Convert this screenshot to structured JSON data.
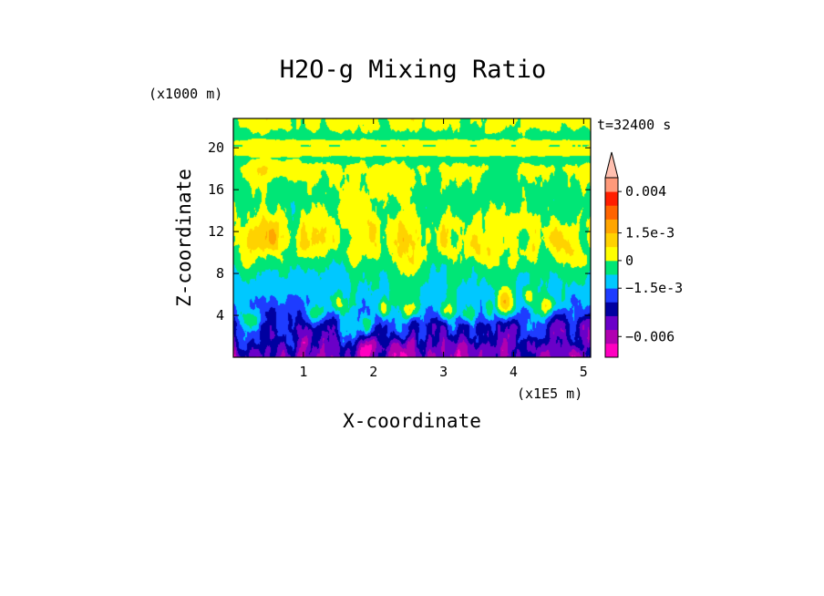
{
  "chart_data": {
    "type": "heatmap",
    "title": "H2O-g Mixing Ratio",
    "xlabel": "X-coordinate",
    "ylabel": "Z-coordinate",
    "x_unit": "(x1E5 m)",
    "y_unit": "(x1000 m)",
    "time_label": "t=32400 s",
    "x_range": [
      0,
      5.1
    ],
    "y_range": [
      0,
      22.8
    ],
    "x_ticks": [
      {
        "value": 1,
        "label": "1"
      },
      {
        "value": 2,
        "label": "2"
      },
      {
        "value": 3,
        "label": "3"
      },
      {
        "value": 4,
        "label": "4"
      },
      {
        "value": 5,
        "label": "5"
      }
    ],
    "y_ticks": [
      {
        "value": 4,
        "label": "4"
      },
      {
        "value": 8,
        "label": "8"
      },
      {
        "value": 12,
        "label": "12"
      },
      {
        "value": 16,
        "label": "16"
      },
      {
        "value": 20,
        "label": "20"
      }
    ],
    "colorbar": {
      "levels": [
        "#ff00c0",
        "#b000b0",
        "#6a00c8",
        "#0000a0",
        "#1e3cff",
        "#00c8ff",
        "#00e676",
        "#ffff00",
        "#ffd200",
        "#ffa500",
        "#ff6400",
        "#ff1e00",
        "#ff9a7a",
        "#ffc0b0"
      ],
      "extend": "max",
      "labels": [
        {
          "value": 0.004,
          "label": "0.004",
          "level": 12
        },
        {
          "value": 0.0015,
          "label": "1.5e-3",
          "level": 9
        },
        {
          "value": 0,
          "label": "0",
          "level": 7
        },
        {
          "value": -0.0015,
          "label": "−1.5e-3",
          "level": 5
        },
        {
          "value": -0.006,
          "label": "−0.006",
          "level": 1.5
        }
      ]
    },
    "field": {
      "ygrid": [
        0,
        1,
        2,
        3,
        4,
        5,
        6,
        7,
        8,
        9,
        10,
        11,
        12,
        13,
        14,
        15,
        16,
        17,
        18,
        19,
        19.4,
        19.7,
        20.2,
        20.5,
        21,
        22,
        22.8
      ],
      "profile": [
        2.4,
        3.2,
        3.6,
        3.8,
        4.4,
        5.2,
        5.6,
        5.8,
        6.0,
        6.5,
        7.1,
        7.4,
        7.4,
        7.2,
        6.8,
        6.6,
        6.6,
        6.8,
        7.0,
        6.6,
        7.4,
        7.6,
        7.0,
        7.6,
        6.5,
        7.2,
        7.4
      ],
      "noise_amp": [
        1.2,
        1.3,
        1.3,
        1.2,
        1.0,
        0.8,
        0.5,
        0.4,
        0.4,
        0.6,
        0.7,
        0.8,
        0.8,
        0.7,
        0.6,
        0.5,
        0.5,
        0.4,
        0.4,
        0.2,
        0.1,
        0.1,
        0.1,
        0.1,
        0.4,
        0.5,
        0.5
      ],
      "plumes": [
        {
          "x": 1.15,
          "z": 4.0,
          "sx": 0.12,
          "sz": 1.0,
          "v": 3.2
        },
        {
          "x": 1.95,
          "z": 3.0,
          "sx": 0.15,
          "sz": 0.9,
          "v": 3.2
        },
        {
          "x": 2.15,
          "z": 4.5,
          "sx": 0.08,
          "sz": 0.9,
          "v": 2.8
        },
        {
          "x": 2.55,
          "z": 4.4,
          "sx": 0.1,
          "sz": 0.8,
          "v": 2.4
        },
        {
          "x": 3.05,
          "z": 4.2,
          "sx": 0.12,
          "sz": 0.9,
          "v": 2.8
        },
        {
          "x": 3.35,
          "z": 4.0,
          "sx": 0.1,
          "sz": 0.8,
          "v": 2.2
        },
        {
          "x": 3.65,
          "z": 4.4,
          "sx": 0.07,
          "sz": 1.0,
          "v": 2.4
        },
        {
          "x": 3.9,
          "z": 5.2,
          "sx": 0.14,
          "sz": 1.4,
          "v": 3.6
        },
        {
          "x": 4.2,
          "z": 5.8,
          "sx": 0.08,
          "sz": 0.9,
          "v": 2.2
        },
        {
          "x": 4.5,
          "z": 4.8,
          "sx": 0.12,
          "sz": 1.0,
          "v": 3.0
        },
        {
          "x": 0.25,
          "z": 3.5,
          "sx": 0.12,
          "sz": 1.0,
          "v": 2.2
        },
        {
          "x": 1.5,
          "z": 5.0,
          "sx": 0.12,
          "sz": 1.0,
          "v": 1.8
        },
        {
          "x": 2.4,
          "z": 9.0,
          "sx": 0.18,
          "sz": 3.0,
          "v": 1.2
        },
        {
          "x": 0.5,
          "z": 11.5,
          "sx": 0.2,
          "sz": 1.5,
          "v": 1.3
        },
        {
          "x": 1.1,
          "z": 10.5,
          "sx": 0.15,
          "sz": 2.0,
          "v": 1.0
        },
        {
          "x": 3.6,
          "z": 10.0,
          "sx": 0.2,
          "sz": 2.5,
          "v": 1.2
        },
        {
          "x": 4.7,
          "z": 10.5,
          "sx": 0.2,
          "sz": 1.8,
          "v": 1.0
        },
        {
          "x": 2.2,
          "z": 16.5,
          "sx": 0.5,
          "sz": 2.0,
          "v": 1.0
        },
        {
          "x": 0.7,
          "z": 18.0,
          "sx": 0.4,
          "sz": 1.0,
          "v": 1.0
        },
        {
          "x": 2.0,
          "z": 0.8,
          "sx": 0.4,
          "sz": 0.8,
          "v": -1.5
        },
        {
          "x": 3.3,
          "z": 0.8,
          "sx": 0.5,
          "sz": 0.8,
          "v": -1.0
        },
        {
          "x": 4.3,
          "z": 1.0,
          "sx": 0.4,
          "sz": 0.8,
          "v": -1.0
        }
      ]
    }
  }
}
